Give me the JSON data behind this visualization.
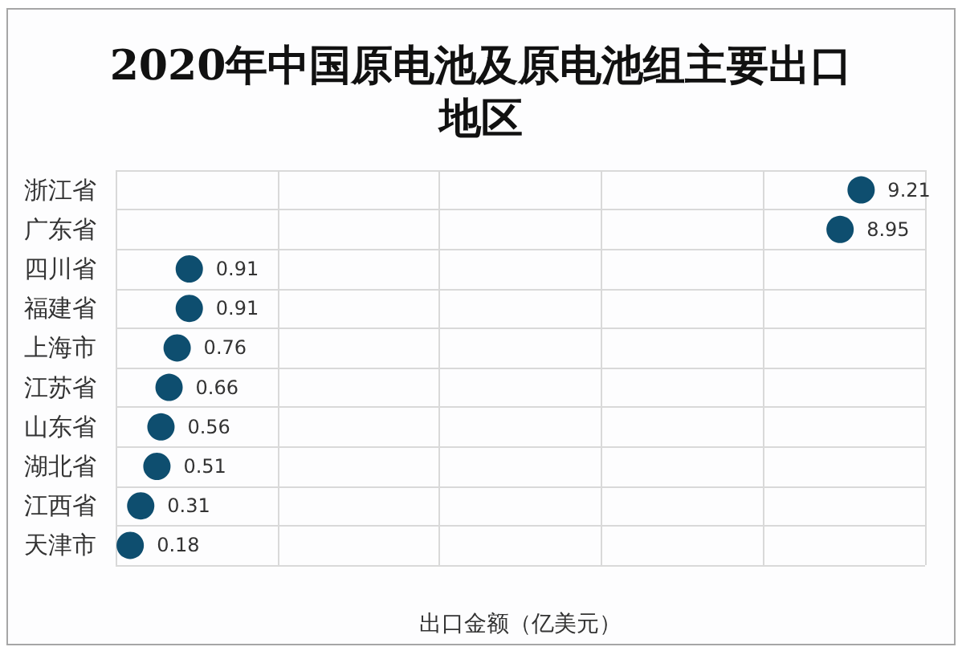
{
  "chart_data": {
    "type": "scatter",
    "orientation": "horizontal",
    "title": "2020年中国原电池及原电池组主要出口地区",
    "xlabel": "出口金额（亿美元）",
    "categories": [
      "浙江省",
      "广东省",
      "四川省",
      "福建省",
      "上海市",
      "江苏省",
      "山东省",
      "湖北省",
      "江西省",
      "天津市"
    ],
    "values": [
      9.21,
      8.95,
      0.91,
      0.91,
      0.76,
      0.66,
      0.56,
      0.51,
      0.31,
      0.18
    ],
    "color": "#0e4e6f",
    "xlim": [
      0,
      10
    ],
    "xticks": [
      {
        "value": 0,
        "label": null
      },
      {
        "value": 2,
        "label": null
      },
      {
        "value": 4,
        "label": null
      },
      {
        "value": 6,
        "label": null
      },
      {
        "value": 8,
        "label": null
      },
      {
        "value": 10,
        "label": null
      }
    ],
    "tick_labels": "y",
    "grid": true,
    "data_labels": true,
    "marker": "circle"
  }
}
